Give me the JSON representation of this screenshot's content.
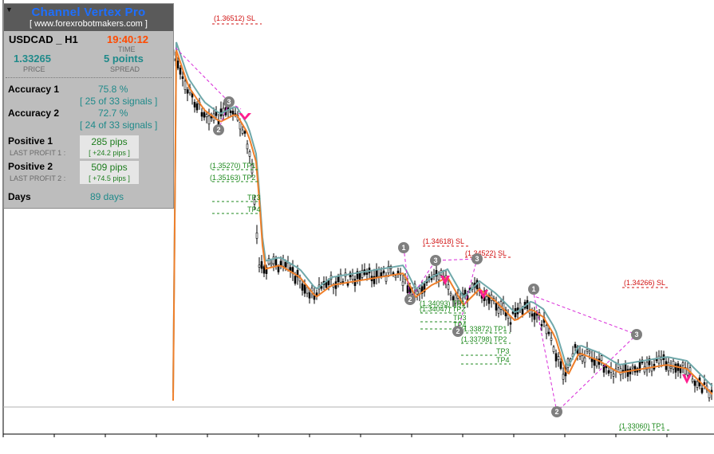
{
  "panel": {
    "title": "Channel Vertex Pro",
    "url": "[ www.forexrobotmakers.com ]",
    "symbol": "USDCAD _ H1",
    "time": "19:40:12",
    "time_label": "TIME",
    "price": "1.33265",
    "price_label": "PRICE",
    "spread": "5 points",
    "spread_label": "SPREAD",
    "accuracy1_label": "Accuracy 1",
    "accuracy1_value": "75.8 %",
    "accuracy1_signals": "[ 25 of 33 signals ]",
    "accuracy2_label": "Accuracy 2",
    "accuracy2_value": "72.7 %",
    "accuracy2_signals": "[ 24 of 33 signals ]",
    "positive1_label": "Positive 1",
    "positive1_value": "285 pips",
    "last_profit1_label": "LAST PROFIT 1 :",
    "last_profit1_value": "[ +24.2 pips ]",
    "positive2_label": "Positive 2",
    "positive2_value": "509 pips",
    "last_profit2_label": "LAST PROFIT 2 :",
    "last_profit2_value": "[ +74.5 pips ]",
    "days_label": "Days",
    "days_value": "89 days"
  },
  "levels": {
    "sl1": "(1.36512) SL",
    "tp1a": "(1.35270) TP1",
    "tp2a": "(1.35163) TP2",
    "tp3a": "TP3",
    "tp4a": "TP4",
    "sl2": "(1.34618) SL",
    "sl3": "(1.34522) SL",
    "tp1b": "(1.34093) TP1",
    "tp2b": "(1.34047) TP2",
    "tp3b": "TP3",
    "tp4b": "TP4",
    "tp1c": "(1.33872) TP1",
    "tp2c": "(1.33798) TP2",
    "tp3c": "TP3",
    "tp4c": "TP4",
    "sl4": "(1.34266) SL",
    "tp1d": "(1.33060) TP1"
  },
  "markers": {
    "m1": "3",
    "m2": "2",
    "m3": "1",
    "m4": "3",
    "m5": "3",
    "m6": "2",
    "m7": "2",
    "m8": "1",
    "m9": "3",
    "m10": "2"
  },
  "colors": {
    "upper_band": "#6fa8aa",
    "lower_band": "#ef7f2a",
    "sl_text": "#d11010",
    "tp_text": "#1e8a1e",
    "signal_arrow": "#ff1f8f",
    "pattern_line": "#d82ad8",
    "marker": "#7f7f7f"
  }
}
